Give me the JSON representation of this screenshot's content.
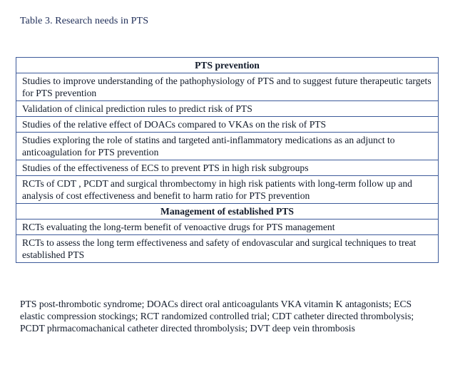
{
  "caption": "Table 3. Research needs in PTS",
  "table": {
    "section1_header": "PTS prevention",
    "section1_rows": [
      "Studies to improve understanding of the pathophysiology of PTS and to suggest future therapeutic targets for PTS prevention",
      "Validation of clinical prediction rules to predict risk of PTS",
      "Studies of the relative effect of DOACs compared to VKAs on the risk of PTS",
      "Studies exploring the role of statins and targeted anti-inflammatory medications as an adjunct to anticoagulation for PTS prevention",
      "Studies of the effectiveness of ECS to prevent PTS in high risk subgroups",
      "RCTs of CDT , PCDT and surgical thrombectomy in high risk patients with long-term follow up and analysis of cost effectiveness and benefit to harm ratio for PTS prevention"
    ],
    "section2_header": "Management of established PTS",
    "section2_rows": [
      "RCTs  evaluating the long-term benefit of venoactive drugs for PTS  management",
      "RCTs  to assess the long term effectiveness and safety of endovascular and surgical techniques to treat established PTS"
    ]
  },
  "footnote": "PTS post-thrombotic syndrome; DOACs direct oral anticoagulants VKA vitamin K antagonists; ECS elastic compression stockings; RCT randomized controlled trial; CDT catheter directed thrombolysis; PCDT phrmacomachanical catheter directed thrombolysis; DVT deep vein thrombosis"
}
